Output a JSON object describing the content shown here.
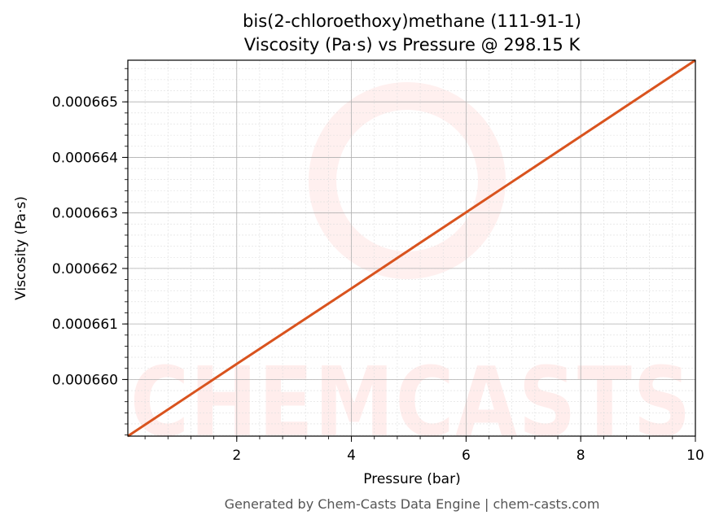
{
  "chart_data": {
    "type": "line",
    "title": "bis(2-chloroethoxy)methane (111-91-1)",
    "subtitle": "Viscosity (Pa·s) vs Pressure @ 298.15 K",
    "xlabel": "Pressure (bar)",
    "ylabel": "Viscosity (Pa·s)",
    "xlim": [
      0.1,
      10
    ],
    "ylim": [
      0.00065898,
      0.00066575
    ],
    "x_ticks": [
      2,
      4,
      6,
      8,
      10
    ],
    "x_tick_labels": [
      "2",
      "4",
      "6",
      "8",
      "10"
    ],
    "y_ticks": [
      0.00066,
      0.000661,
      0.000662,
      0.000663,
      0.000664,
      0.000665
    ],
    "y_tick_labels": [
      "0.000660",
      "0.000661",
      "0.000662",
      "0.000663",
      "0.000664",
      "0.000665"
    ],
    "grid": true,
    "series": [
      {
        "color": "#d9531e",
        "x": [
          0.1,
          2,
          4,
          6,
          8,
          10
        ],
        "y": [
          0.00065898,
          0.00066028,
          0.00066164,
          0.00066301,
          0.00066438,
          0.00066575
        ]
      }
    ]
  },
  "footer": "Generated by Chem-Casts Data Engine | chem-casts.com",
  "watermark": "CHEMCASTS",
  "colors": {
    "line": "#d9531e",
    "watermark": "#ff3b30"
  }
}
